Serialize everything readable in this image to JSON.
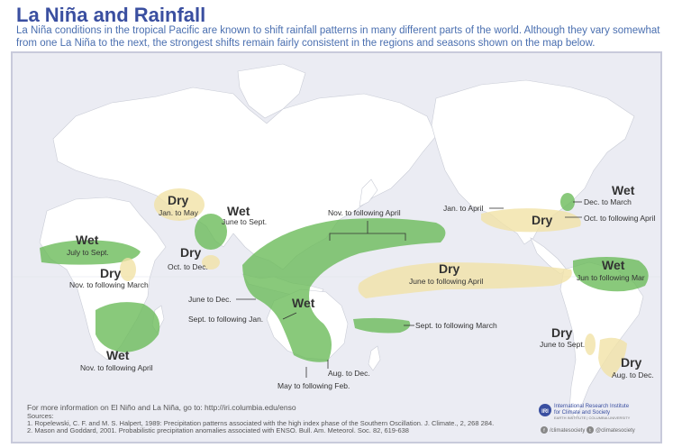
{
  "title": "La Niña and Rainfall",
  "intro": "La Niña conditions in the tropical Pacific are known to shift rainfall patterns in many different parts of the world. Although they vary somewhat from one La Niña to the next, the strongest shifts remain fairly consistent in the regions and seasons shown on the map below.",
  "colors": {
    "wet": "#6cbb5a",
    "dry": "#f1e2a6",
    "land": "#ffffff",
    "ocean": "#ebecf3",
    "title": "#3a4fa0"
  },
  "regions": [
    {
      "id": "africa-sahel",
      "type": "Wet",
      "season": "July to Sept."
    },
    {
      "id": "africa-east",
      "type": "Dry",
      "season": "Nov. to following March"
    },
    {
      "id": "africa-south",
      "type": "Wet",
      "season": "Nov. to following April"
    },
    {
      "id": "middle-east",
      "type": "Dry",
      "season": "Jan. to May"
    },
    {
      "id": "india",
      "type": "Wet",
      "season": "June to Sept."
    },
    {
      "id": "sri-lanka",
      "type": "Dry",
      "season": "Oct. to Dec."
    },
    {
      "id": "maritime-continent",
      "type": "Wet",
      "season": "Nov. to following April"
    },
    {
      "id": "se-asia",
      "type": "",
      "season": "June to Dec."
    },
    {
      "id": "australia-north",
      "type": "",
      "season": "Sept. to following Jan."
    },
    {
      "id": "australia-center",
      "type": "Wet",
      "season": "May to following Feb."
    },
    {
      "id": "australia-se",
      "type": "",
      "season": "Aug. to Dec."
    },
    {
      "id": "new-zealand",
      "type": "",
      "season": "Sept. to following March"
    },
    {
      "id": "central-pacific",
      "type": "Dry",
      "season": "June to following April"
    },
    {
      "id": "us-south",
      "type": "Dry",
      "season": "Oct. to following April"
    },
    {
      "id": "us-southwest",
      "type": "",
      "season": "Jan. to April"
    },
    {
      "id": "us-ohio",
      "type": "Wet",
      "season": "Dec. to March"
    },
    {
      "id": "south-america-north",
      "type": "Wet",
      "season": "Jun to following Mar"
    },
    {
      "id": "south-america-chile",
      "type": "Dry",
      "season": "June to Sept."
    },
    {
      "id": "south-america-se",
      "type": "Dry",
      "season": "Aug. to Dec."
    }
  ],
  "footer": {
    "link": "For more information on El Niño and La Niña, go to: http://iri.columbia.edu/enso",
    "sources_label": "Sources:",
    "source1": "1. Ropelewski, C. F. and M. S. Halpert, 1989: Precipitation patterns associated with the high index phase of the Southern Oscillation. J. Climate., 2, 268 284.",
    "source2": "2. Mason and Goddard, 2001. Probabilistic precipitation anomalies associated with ENSO. Bull. Am. Meteorol. Soc. 82, 619-638",
    "org_badge": "IRI",
    "org_line1": "International Research Institute",
    "org_line2": "for Climate and Society",
    "org_line3": "EARTH INSTITUTE | COLUMBIA UNIVERSITY",
    "facebook_handle": "/climatesociety",
    "twitter_handle": "@climatesociety"
  }
}
